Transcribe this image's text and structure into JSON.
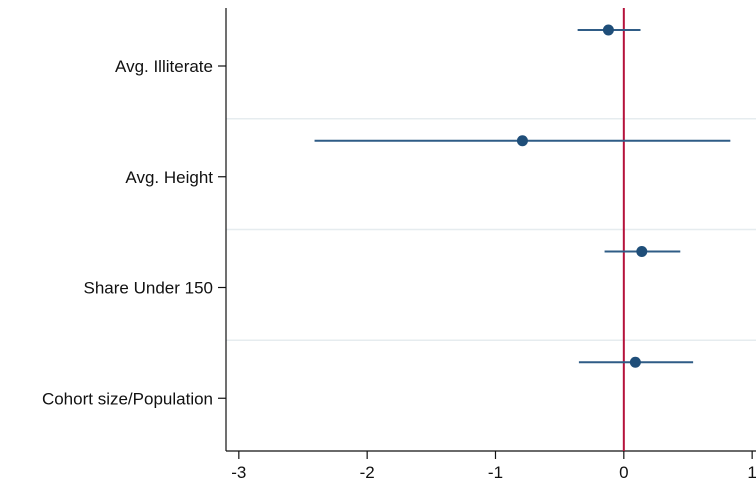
{
  "chart_data": {
    "type": "coefficient-plot",
    "orientation": "horizontal",
    "categories": [
      "Avg. Illiterate",
      "Avg. Height",
      "Share Under 150",
      "Cohort size/Population"
    ],
    "points": [
      {
        "category": "Avg. Illiterate",
        "estimate": -0.12,
        "ci": [
          -0.36,
          0.13
        ]
      },
      {
        "category": "Avg. Height",
        "estimate": -0.79,
        "ci": [
          -2.41,
          0.83
        ]
      },
      {
        "category": "Share Under 150",
        "estimate": 0.14,
        "ci": [
          -0.15,
          0.44
        ]
      },
      {
        "category": "Cohort size/Population",
        "estimate": 0.09,
        "ci": [
          -0.35,
          0.54
        ]
      }
    ],
    "x_ticks": [
      -3,
      -2,
      -1,
      0,
      1
    ],
    "x_tick_labels": [
      "-3",
      "-2",
      "-1",
      "0",
      "1"
    ],
    "xlim": [
      -3.1,
      1.03
    ],
    "reference_line": 0,
    "xlabel": "",
    "ylabel": "",
    "title": "",
    "grid": "horizontal separators between categories"
  },
  "colors": {
    "marker": "#1f4e79",
    "ci_line": "#2f5c86",
    "reference_line": "#b5123b",
    "axis": "#111111",
    "separator": "#e6ecef"
  }
}
